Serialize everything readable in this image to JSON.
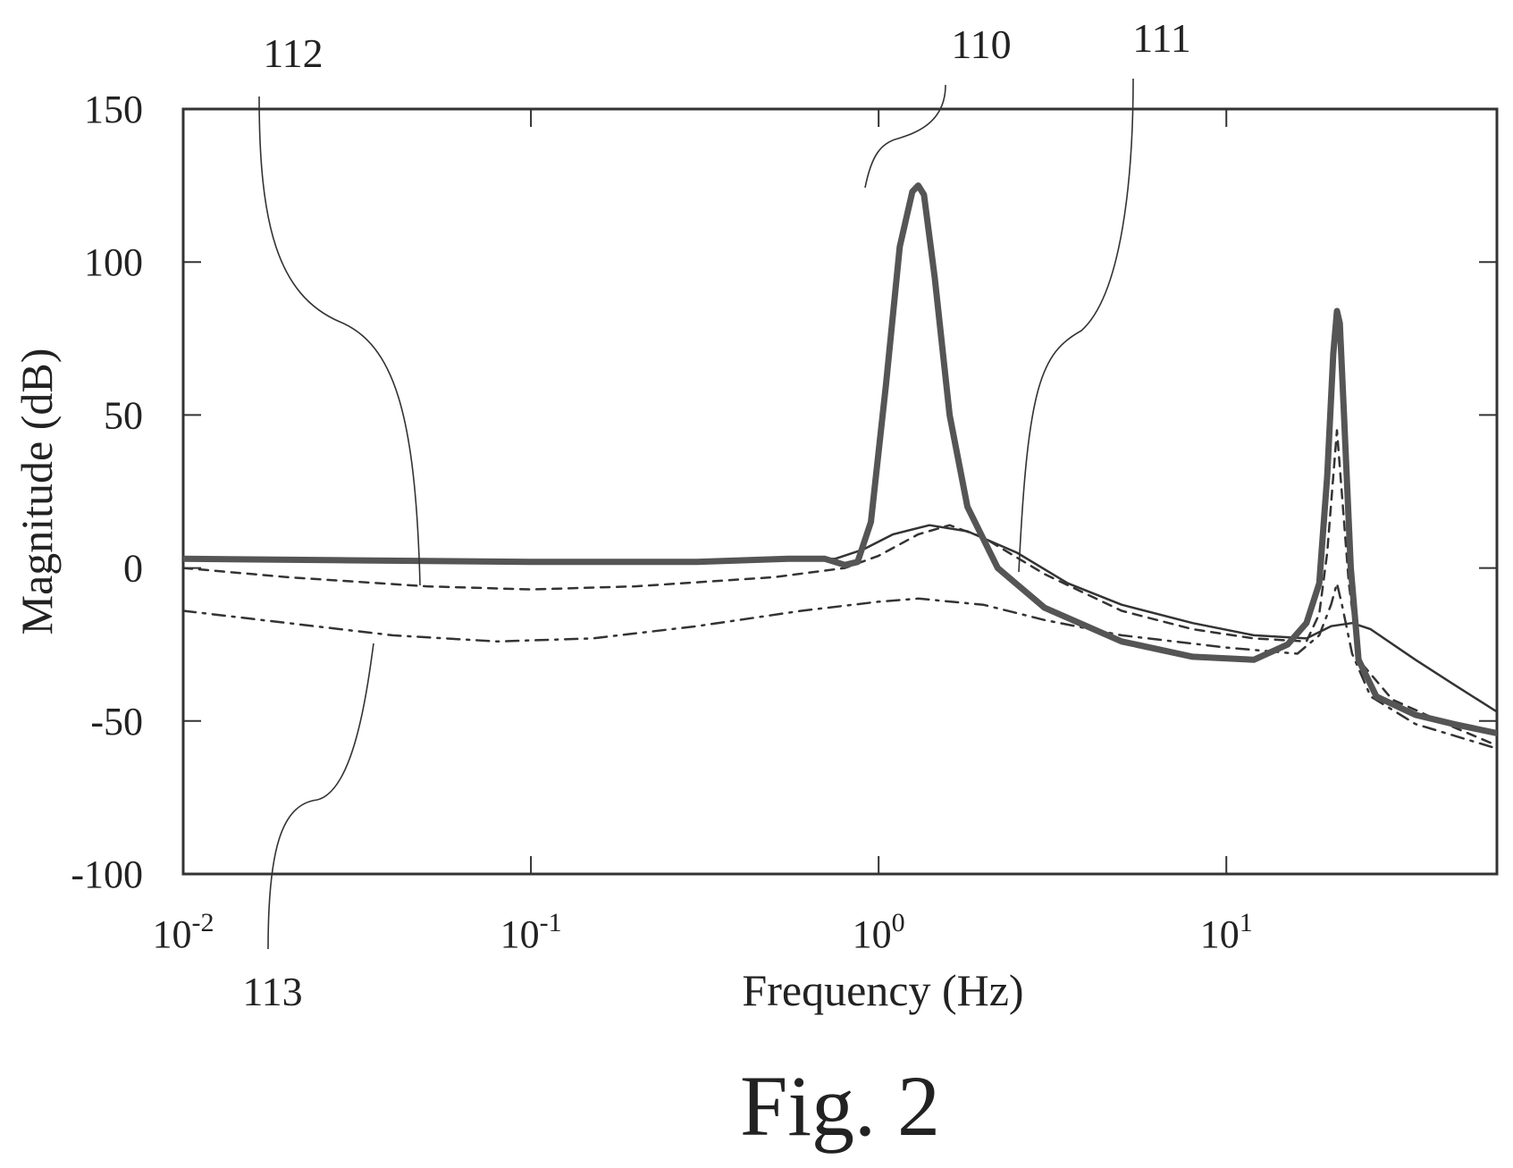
{
  "chart_data": {
    "type": "line",
    "caption": "Fig. 2",
    "xlabel": "Frequency (Hz)",
    "ylabel": "Magnitude (dB)",
    "x_scale": "log",
    "xlim": [
      0.01,
      60
    ],
    "ylim": [
      -100,
      150
    ],
    "grid": false,
    "x_ticks": [
      {
        "value": 0.01,
        "base": "10",
        "exp": "-2"
      },
      {
        "value": 0.1,
        "base": "10",
        "exp": "-1"
      },
      {
        "value": 1,
        "base": "10",
        "exp": "0"
      },
      {
        "value": 10,
        "base": "10",
        "exp": "1"
      }
    ],
    "y_ticks": [
      {
        "value": 150,
        "label": "150"
      },
      {
        "value": 100,
        "label": "100"
      },
      {
        "value": 50,
        "label": "50"
      },
      {
        "value": 0,
        "label": "0"
      },
      {
        "value": -50,
        "label": "-50"
      },
      {
        "value": -100,
        "label": "-100"
      }
    ],
    "reference_labels": [
      {
        "label": "110",
        "series": "bold-solid"
      },
      {
        "label": "111",
        "series": "thin-solid"
      },
      {
        "label": "112",
        "series": "dashed"
      },
      {
        "label": "113",
        "series": "dash-dot"
      }
    ],
    "series": [
      {
        "id": "bold-solid",
        "style": "bold-solid",
        "points": [
          [
            0.01,
            3
          ],
          [
            0.03,
            2.5
          ],
          [
            0.1,
            2
          ],
          [
            0.3,
            2
          ],
          [
            0.55,
            3
          ],
          [
            0.7,
            3
          ],
          [
            0.8,
            1
          ],
          [
            0.87,
            2
          ],
          [
            0.95,
            15
          ],
          [
            1.05,
            60
          ],
          [
            1.15,
            105
          ],
          [
            1.25,
            123
          ],
          [
            1.3,
            125
          ],
          [
            1.35,
            122
          ],
          [
            1.45,
            95
          ],
          [
            1.6,
            50
          ],
          [
            1.8,
            20
          ],
          [
            2.2,
            0
          ],
          [
            3,
            -13
          ],
          [
            5,
            -24
          ],
          [
            8,
            -29
          ],
          [
            12,
            -30
          ],
          [
            15,
            -25
          ],
          [
            17,
            -18
          ],
          [
            18.5,
            -5
          ],
          [
            19.5,
            30
          ],
          [
            20.3,
            70
          ],
          [
            20.8,
            84
          ],
          [
            21.2,
            80
          ],
          [
            21.8,
            50
          ],
          [
            22.8,
            0
          ],
          [
            24,
            -30
          ],
          [
            27,
            -42
          ],
          [
            35,
            -48
          ],
          [
            45,
            -51
          ],
          [
            60,
            -54
          ]
        ]
      },
      {
        "id": "thin-solid",
        "style": "thin-solid",
        "points": [
          [
            0.01,
            3
          ],
          [
            0.1,
            2
          ],
          [
            0.5,
            2.5
          ],
          [
            0.75,
            3
          ],
          [
            0.9,
            6
          ],
          [
            1.1,
            11
          ],
          [
            1.4,
            14
          ],
          [
            1.8,
            12
          ],
          [
            2.5,
            5
          ],
          [
            3.5,
            -5
          ],
          [
            5,
            -12
          ],
          [
            8,
            -18
          ],
          [
            12,
            -22
          ],
          [
            17,
            -23
          ],
          [
            20,
            -19
          ],
          [
            23,
            -18
          ],
          [
            26,
            -20
          ],
          [
            35,
            -30
          ],
          [
            45,
            -38
          ],
          [
            60,
            -47
          ]
        ]
      },
      {
        "id": "dashed",
        "style": "dashed",
        "points": [
          [
            0.01,
            0
          ],
          [
            0.02,
            -3
          ],
          [
            0.05,
            -6
          ],
          [
            0.1,
            -7
          ],
          [
            0.2,
            -6
          ],
          [
            0.5,
            -3
          ],
          [
            0.8,
            0
          ],
          [
            1,
            4
          ],
          [
            1.3,
            11
          ],
          [
            1.6,
            14
          ],
          [
            2,
            10
          ],
          [
            3,
            -2
          ],
          [
            5,
            -14
          ],
          [
            8,
            -20
          ],
          [
            12,
            -23
          ],
          [
            17,
            -24
          ],
          [
            18.5,
            -15
          ],
          [
            19.5,
            5
          ],
          [
            20.3,
            30
          ],
          [
            20.8,
            45
          ],
          [
            21.3,
            30
          ],
          [
            22.5,
            -5
          ],
          [
            24,
            -30
          ],
          [
            30,
            -43
          ],
          [
            45,
            -52
          ],
          [
            60,
            -58
          ]
        ]
      },
      {
        "id": "dash-dot",
        "style": "dash-dot",
        "points": [
          [
            0.01,
            -14
          ],
          [
            0.02,
            -18
          ],
          [
            0.04,
            -22
          ],
          [
            0.08,
            -24
          ],
          [
            0.15,
            -23
          ],
          [
            0.3,
            -19
          ],
          [
            0.6,
            -14
          ],
          [
            1,
            -11
          ],
          [
            1.3,
            -10
          ],
          [
            2,
            -12
          ],
          [
            3,
            -17
          ],
          [
            5,
            -22
          ],
          [
            10,
            -26
          ],
          [
            16,
            -28
          ],
          [
            18.5,
            -22
          ],
          [
            20,
            -12
          ],
          [
            20.8,
            -5
          ],
          [
            21.5,
            -12
          ],
          [
            23,
            -28
          ],
          [
            26,
            -42
          ],
          [
            35,
            -51
          ],
          [
            60,
            -59
          ]
        ]
      }
    ]
  }
}
